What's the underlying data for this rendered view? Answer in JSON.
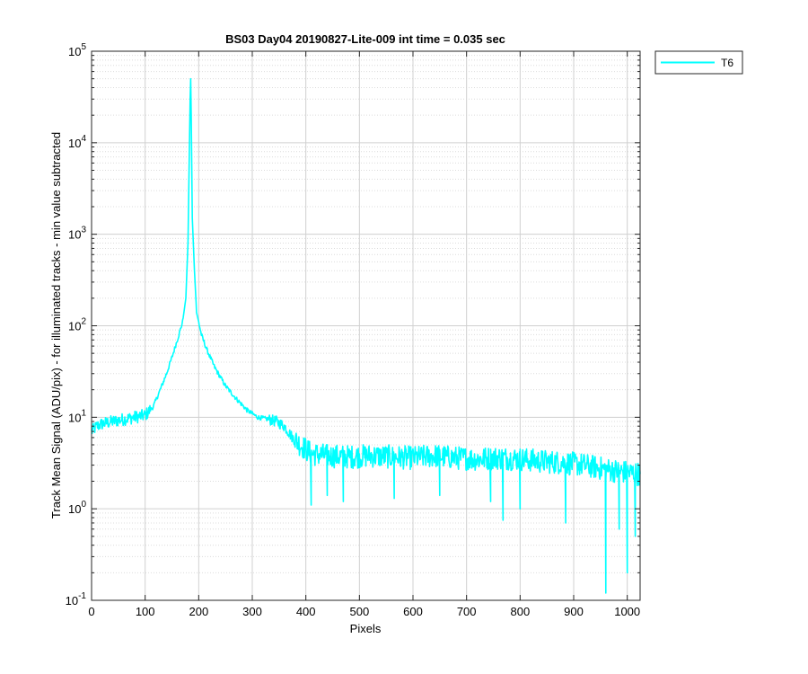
{
  "chart_data": {
    "type": "line",
    "title": "BS03 Day04 20190827-Lite-009 int time = 0.035 sec",
    "xlabel": "Pixels",
    "ylabel": "Track Mean Signal (ADU/pix) - for illuminated tracks - min value subtracted",
    "xlim": [
      0,
      1024
    ],
    "ylim": [
      0.1,
      100000
    ],
    "yscale": "log",
    "grid": true,
    "minor_grid": true,
    "legend_position": "outside-top-right",
    "x_ticks": [
      "0",
      "100",
      "200",
      "300",
      "400",
      "500",
      "600",
      "700",
      "800",
      "900",
      "1000"
    ],
    "y_ticks": [
      {
        "base": "10",
        "exp": "-1"
      },
      {
        "base": "10",
        "exp": "0"
      },
      {
        "base": "10",
        "exp": "1"
      },
      {
        "base": "10",
        "exp": "2"
      },
      {
        "base": "10",
        "exp": "3"
      },
      {
        "base": "10",
        "exp": "4"
      },
      {
        "base": "10",
        "exp": "5"
      }
    ],
    "series": [
      {
        "name": "T6",
        "color": "#00FFFF",
        "x": [
          0,
          10,
          20,
          40,
          60,
          80,
          100,
          115,
          125,
          140,
          150,
          160,
          170,
          176,
          180,
          182,
          184,
          185,
          186,
          188,
          192,
          196,
          200,
          205,
          215,
          230,
          250,
          270,
          290,
          310,
          330,
          345,
          360,
          375,
          390,
          410,
          440,
          480,
          520,
          560,
          600,
          640,
          680,
          720,
          760,
          800,
          840,
          880,
          920,
          960,
          1000,
          1024
        ],
        "y": [
          7,
          8,
          8.5,
          9,
          9.5,
          10,
          10.5,
          13,
          18,
          30,
          45,
          70,
          110,
          200,
          800,
          5000,
          30000,
          50000,
          20000,
          1500,
          400,
          140,
          110,
          80,
          55,
          35,
          22,
          16,
          12,
          10,
          9.5,
          9,
          8,
          6,
          5,
          4,
          3.8,
          3.7,
          3.8,
          3.7,
          3.6,
          3.8,
          3.6,
          3.5,
          3.6,
          3.5,
          3.3,
          3.2,
          3,
          2.7,
          2.5,
          2.4
        ]
      }
    ],
    "dips": [
      {
        "x": 410,
        "y": 1.1
      },
      {
        "x": 440,
        "y": 1.4
      },
      {
        "x": 470,
        "y": 1.2
      },
      {
        "x": 565,
        "y": 1.3
      },
      {
        "x": 650,
        "y": 1.4
      },
      {
        "x": 745,
        "y": 1.2
      },
      {
        "x": 768,
        "y": 0.75
      },
      {
        "x": 800,
        "y": 1.0
      },
      {
        "x": 885,
        "y": 0.7
      },
      {
        "x": 960,
        "y": 0.12
      },
      {
        "x": 985,
        "y": 0.6
      },
      {
        "x": 1000,
        "y": 0.2
      },
      {
        "x": 1015,
        "y": 0.5
      }
    ]
  }
}
